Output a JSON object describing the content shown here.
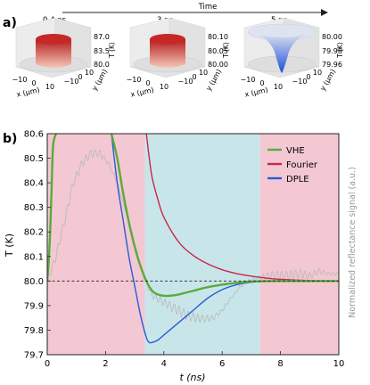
{
  "panel_a": {
    "label": "a)",
    "timeline_label": "Time",
    "plots": [
      {
        "time": "0.4 ns",
        "z_ticks": [
          "87.0",
          "83.5",
          "80.0"
        ],
        "z_label": "T (K)",
        "x_ticks": [
          "−10",
          "0",
          "10"
        ],
        "x_label": "x (μm)",
        "y_ticks": [
          "−10",
          "0",
          "10"
        ],
        "y_label": "y (μm)",
        "shape": "hot",
        "colors": [
          "#b71c1c",
          "#f4c7b8"
        ]
      },
      {
        "time": "3 ns",
        "z_ticks": [
          "80.10",
          "80.05",
          "80.00"
        ],
        "z_label": "T (K)",
        "x_ticks": [
          "−10",
          "0",
          "10"
        ],
        "x_label": "x (μm)",
        "y_ticks": [
          "−10",
          "0",
          "10"
        ],
        "y_label": "y (μm)",
        "shape": "hot",
        "colors": [
          "#b71c1c",
          "#f4c7b8"
        ]
      },
      {
        "time": "5 ns",
        "z_ticks": [
          "80.00",
          "79.98",
          "79.96"
        ],
        "z_label": "T (K)",
        "x_ticks": [
          "−10",
          "0",
          "10"
        ],
        "x_label": "x (μm)",
        "y_ticks": [
          "−10",
          "0",
          "10"
        ],
        "y_label": "y (μm)",
        "shape": "cold",
        "colors": [
          "#d8e0ee",
          "#1f4fd8"
        ]
      }
    ]
  },
  "panel_b": {
    "label": "b)"
  },
  "chart_data": {
    "type": "line",
    "xlabel": "t (ns)",
    "ylabel": "T (K)",
    "y2label": "Normalized reflectance signal (a.u.)",
    "xlim": [
      0,
      10
    ],
    "ylim": [
      79.7,
      80.6
    ],
    "x_ticks": [
      0,
      2,
      4,
      6,
      8,
      10
    ],
    "y_ticks": [
      "79.7",
      "79.8",
      "79.9",
      "80.0",
      "80.1",
      "80.2",
      "80.3",
      "80.4",
      "80.5",
      "80.6"
    ],
    "reference_line": 80.0,
    "grid": false,
    "legend_position": "top-right",
    "background_bands": [
      {
        "x0": 0,
        "x1": 3.35,
        "color": "#f3c8d3"
      },
      {
        "x0": 3.35,
        "x1": 7.3,
        "color": "#c8e6ea"
      },
      {
        "x0": 7.3,
        "x1": 10,
        "color": "#f3c8d3"
      }
    ],
    "series": [
      {
        "name": "VHE",
        "color": "#5aaa3c",
        "x": [
          0,
          0.05,
          0.1,
          0.15,
          0.2,
          0.3,
          2.2,
          2.4,
          2.6,
          2.8,
          3.0,
          3.2,
          3.4,
          3.6,
          3.8,
          4.0,
          4.2,
          4.5,
          5.0,
          5.5,
          6.0,
          6.5,
          7.0,
          8.0,
          9.0,
          10.0
        ],
        "y": [
          80.0,
          80.08,
          80.2,
          80.38,
          80.55,
          80.6,
          80.6,
          80.5,
          80.36,
          80.24,
          80.14,
          80.06,
          80.0,
          79.96,
          79.945,
          79.94,
          79.94,
          79.945,
          79.96,
          79.975,
          79.985,
          79.993,
          79.998,
          80.0,
          80.0,
          80.0
        ]
      },
      {
        "name": "Fourier",
        "color": "#c8264a",
        "x": [
          3.4,
          3.5,
          3.6,
          3.8,
          4.0,
          4.5,
          5.0,
          5.5,
          6.0,
          6.5,
          7.0,
          7.5,
          8.0,
          9.0,
          10.0
        ],
        "y": [
          80.6,
          80.5,
          80.42,
          80.33,
          80.26,
          80.16,
          80.105,
          80.07,
          80.046,
          80.03,
          80.02,
          80.012,
          80.007,
          80.002,
          80.0
        ]
      },
      {
        "name": "DPLE",
        "color": "#2a5bd7",
        "x": [
          2.2,
          2.4,
          2.6,
          2.8,
          3.0,
          3.2,
          3.4,
          3.5,
          3.6,
          3.8,
          4.0,
          4.5,
          5.0,
          5.5,
          6.0,
          6.5,
          7.0,
          8.0,
          10.0
        ],
        "y": [
          80.6,
          80.4,
          80.25,
          80.1,
          79.98,
          79.86,
          79.77,
          79.75,
          79.75,
          79.76,
          79.78,
          79.83,
          79.88,
          79.93,
          79.965,
          79.985,
          79.995,
          80.0,
          80.0
        ]
      },
      {
        "name": "",
        "color": "#b8b8b8",
        "x": [
          0,
          0.3,
          0.6,
          0.9,
          1.2,
          1.5,
          1.8,
          2.1,
          2.4,
          2.7,
          3.0,
          3.3,
          3.6,
          3.9,
          4.2,
          4.5,
          4.8,
          5.1,
          5.4,
          5.7,
          6.0,
          6.3,
          6.6,
          6.9,
          7.2,
          7.5,
          7.8,
          8.1,
          8.4,
          8.7,
          9.0,
          9.3,
          9.6,
          9.9
        ],
        "y": [
          80.0,
          80.1,
          80.25,
          80.4,
          80.48,
          80.52,
          80.52,
          80.48,
          80.4,
          80.28,
          80.15,
          80.02,
          79.94,
          79.92,
          79.9,
          79.88,
          79.86,
          79.85,
          79.845,
          79.85,
          79.88,
          79.93,
          79.975,
          80.0,
          80.01,
          80.02,
          80.025,
          80.02,
          80.025,
          80.03,
          80.02,
          80.04,
          80.03,
          80.03
        ]
      }
    ]
  }
}
